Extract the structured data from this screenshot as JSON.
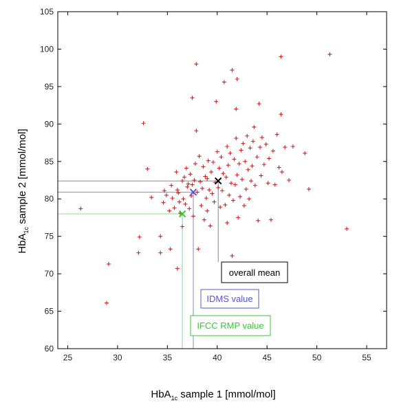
{
  "chart_data": {
    "type": "scatter",
    "xlabel": {
      "prefix": "HbA",
      "sub": "1c",
      "rest": " sample 1 [mmol/mol]"
    },
    "ylabel": {
      "prefix": "HbA",
      "sub": "1c",
      "rest": " sample 2 [mmol/mol]"
    },
    "xlim": [
      24,
      57
    ],
    "ylim": [
      60,
      105
    ],
    "xticks": [
      25,
      30,
      35,
      40,
      45,
      50,
      55
    ],
    "yticks": [
      60,
      65,
      70,
      75,
      80,
      85,
      90,
      95,
      100,
      105
    ],
    "grid": false,
    "colors": {
      "points": "#cc2222",
      "overall_mean": "#000000",
      "idms": "#5555cc",
      "ifcc": "#33cc33",
      "idms_line": "#8888cc",
      "ifcc_line": "#88dd88",
      "mean_line": "#888888"
    },
    "series": [
      {
        "points": [
          [
            26.3,
            78.7
          ],
          [
            28.9,
            66.1
          ],
          [
            29.1,
            71.3
          ],
          [
            32.1,
            72.8
          ],
          [
            32.2,
            74.9
          ],
          [
            32.6,
            90.1
          ],
          [
            33.0,
            84.0
          ],
          [
            33.4,
            80.2
          ],
          [
            34.3,
            75.0
          ],
          [
            34.3,
            72.8
          ],
          [
            34.6,
            79.5
          ],
          [
            34.7,
            81.1
          ],
          [
            34.9,
            80.5
          ],
          [
            35.2,
            78.4
          ],
          [
            35.3,
            73.3
          ],
          [
            35.4,
            81.8
          ],
          [
            35.5,
            80.1
          ],
          [
            35.7,
            78.8
          ],
          [
            35.9,
            83.6
          ],
          [
            36.0,
            70.7
          ],
          [
            36.0,
            81.2
          ],
          [
            36.1,
            80.8
          ],
          [
            36.2,
            79.6
          ],
          [
            36.3,
            78.1
          ],
          [
            36.5,
            82.4
          ],
          [
            36.5,
            76.3
          ],
          [
            36.6,
            80.0
          ],
          [
            36.7,
            82.9
          ],
          [
            36.8,
            79.3
          ],
          [
            36.9,
            84.1
          ],
          [
            37.0,
            81.6
          ],
          [
            37.1,
            82.0
          ],
          [
            37.2,
            78.7
          ],
          [
            37.3,
            83.3
          ],
          [
            37.4,
            80.4
          ],
          [
            37.5,
            81.9
          ],
          [
            37.5,
            93.5
          ],
          [
            37.6,
            77.7
          ],
          [
            37.7,
            82.5
          ],
          [
            37.8,
            84.7
          ],
          [
            37.9,
            98.0
          ],
          [
            37.9,
            89.1
          ],
          [
            38.0,
            80.9
          ],
          [
            38.1,
            73.3
          ],
          [
            38.2,
            85.7
          ],
          [
            38.3,
            82.3
          ],
          [
            38.4,
            79.1
          ],
          [
            38.5,
            81.4
          ],
          [
            38.6,
            84.3
          ],
          [
            38.7,
            77.2
          ],
          [
            38.8,
            83.0
          ],
          [
            38.9,
            80.1
          ],
          [
            39.0,
            82.7
          ],
          [
            39.0,
            78.4
          ],
          [
            39.1,
            85.1
          ],
          [
            39.2,
            81.2
          ],
          [
            39.3,
            76.4
          ],
          [
            39.4,
            83.6
          ],
          [
            39.5,
            80.7
          ],
          [
            39.6,
            84.9
          ],
          [
            39.7,
            79.6
          ],
          [
            39.8,
            82.2
          ],
          [
            39.9,
            93.0
          ],
          [
            40.0,
            86.3
          ],
          [
            40.1,
            81.5
          ],
          [
            40.2,
            84.1
          ],
          [
            40.3,
            78.9
          ],
          [
            40.4,
            85.6
          ],
          [
            40.5,
            81.1
          ],
          [
            40.6,
            83.4
          ],
          [
            40.7,
            95.6
          ],
          [
            40.8,
            79.2
          ],
          [
            40.9,
            82.9
          ],
          [
            41.0,
            87.0
          ],
          [
            41.0,
            76.8
          ],
          [
            41.1,
            84.5
          ],
          [
            41.2,
            80.5
          ],
          [
            41.3,
            86.1
          ],
          [
            41.4,
            82.1
          ],
          [
            41.5,
            97.2
          ],
          [
            41.5,
            72.4
          ],
          [
            41.6,
            79.8
          ],
          [
            41.7,
            85.3
          ],
          [
            41.8,
            81.9
          ],
          [
            41.9,
            88.1
          ],
          [
            41.9,
            92.0
          ],
          [
            42.0,
            83.2
          ],
          [
            42.0,
            96.0
          ],
          [
            42.1,
            77.5
          ],
          [
            42.2,
            84.7
          ],
          [
            42.3,
            80.3
          ],
          [
            42.4,
            86.5
          ],
          [
            42.5,
            82.6
          ],
          [
            42.6,
            87.4
          ],
          [
            42.7,
            79.1
          ],
          [
            42.8,
            85.0
          ],
          [
            42.9,
            81.3
          ],
          [
            43.0,
            88.4
          ],
          [
            43.1,
            83.9
          ],
          [
            43.2,
            80.0
          ],
          [
            43.3,
            86.8
          ],
          [
            43.4,
            82.4
          ],
          [
            43.5,
            84.4
          ],
          [
            43.6,
            87.7
          ],
          [
            43.7,
            89.6
          ],
          [
            43.8,
            81.8
          ],
          [
            44.0,
            85.6
          ],
          [
            44.1,
            77.1
          ],
          [
            44.2,
            92.7
          ],
          [
            44.3,
            86.9
          ],
          [
            44.4,
            83.1
          ],
          [
            44.5,
            88.2
          ],
          [
            44.7,
            84.6
          ],
          [
            44.9,
            87.3
          ],
          [
            45.1,
            82.1
          ],
          [
            45.2,
            85.4
          ],
          [
            45.4,
            77.2
          ],
          [
            45.6,
            86.4
          ],
          [
            45.8,
            81.9
          ],
          [
            46.0,
            88.6
          ],
          [
            46.2,
            84.2
          ],
          [
            46.4,
            99.0
          ],
          [
            46.4,
            91.3
          ],
          [
            46.5,
            83.6
          ],
          [
            46.8,
            86.9
          ],
          [
            47.2,
            82.5
          ],
          [
            47.6,
            87.0
          ],
          [
            48.8,
            86.1
          ],
          [
            49.2,
            81.3
          ],
          [
            51.3,
            99.3
          ],
          [
            53.0,
            76.0
          ]
        ]
      }
    ],
    "markers": {
      "overall_mean": {
        "x": 40.1,
        "y": 82.4
      },
      "idms": {
        "x": 37.6,
        "y": 80.9
      },
      "ifcc": {
        "x": 36.5,
        "y": 78.0
      }
    },
    "annotations": {
      "overall_mean": "overall mean",
      "idms": "IDMS value",
      "ifcc": "IFCC RMP value"
    }
  }
}
